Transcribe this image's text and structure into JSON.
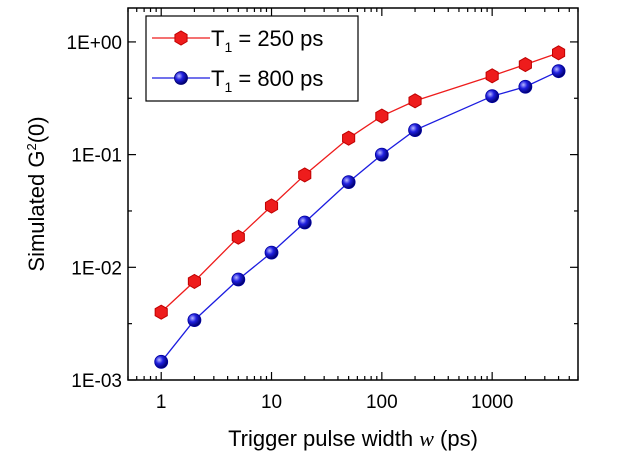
{
  "chart_data": {
    "type": "line",
    "xscale": "log",
    "yscale": "log",
    "xlim": [
      0.5,
      6000
    ],
    "ylim": [
      0.001,
      2
    ],
    "xticks": [
      1,
      10,
      100,
      1000
    ],
    "xtick_labels": [
      "1",
      "10",
      "100",
      "1000"
    ],
    "yticks": [
      0.001,
      0.01,
      0.1,
      1
    ],
    "ytick_labels": [
      "1E-03",
      "1E-02",
      "1E-01",
      "1E+00"
    ],
    "xlabel": {
      "prefix": "Trigger pulse width ",
      "symbol": "w",
      "suffix": " (ps)"
    },
    "ylabel": {
      "prefix": "Simulated G",
      "superscript": "2",
      "suffix": "(0)"
    },
    "legend_position": "top-left",
    "grid": false,
    "x": [
      1,
      2,
      5,
      10,
      20,
      50,
      100,
      200,
      1000,
      2000,
      4000
    ],
    "series": [
      {
        "name_main": "T",
        "name_sub": "1",
        "name_rest": " = 250 ps",
        "color": "#ee1c1c",
        "edge": "#c00000",
        "marker": "hexagon",
        "values": [
          0.004,
          0.0075,
          0.0185,
          0.035,
          0.066,
          0.14,
          0.22,
          0.3,
          0.5,
          0.63,
          0.8
        ]
      },
      {
        "name_main": "T",
        "name_sub": "1",
        "name_rest": " = 800 ps",
        "color": "#1c1ce0",
        "edge": "#0000a0",
        "marker": "sphere",
        "values": [
          0.00145,
          0.0034,
          0.0078,
          0.0135,
          0.025,
          0.057,
          0.1,
          0.165,
          0.33,
          0.4,
          0.55
        ]
      }
    ]
  }
}
